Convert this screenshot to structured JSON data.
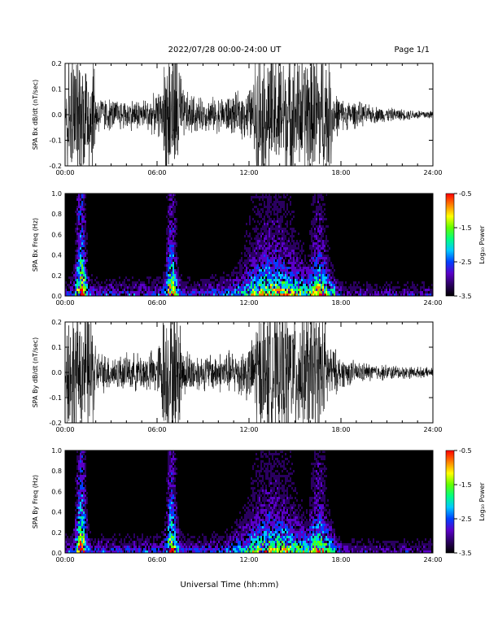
{
  "header": {
    "title": "2022/07/28  00:00-24:00 UT",
    "page": "Page 1/1"
  },
  "xlabel": "Universal Time (hh:mm)",
  "colorbar": {
    "label": "Log₁₀ Power",
    "ticks": [
      "-0.5",
      "-1.5",
      "-2.5",
      "-3.5"
    ],
    "range": [
      -3.5,
      -0.5
    ],
    "colors": [
      "#000000",
      "#2a0060",
      "#5a00c8",
      "#0040ff",
      "#00c8ff",
      "#00ff80",
      "#60ff00",
      "#ffff00",
      "#ff8000",
      "#ff0000"
    ]
  },
  "chart_data": [
    {
      "type": "line",
      "ylabel": "SPA Bx dB/dt (nT/sec)",
      "xlim": [
        0,
        24
      ],
      "ylim": [
        -0.2,
        0.2
      ],
      "xticks": [
        "00:00",
        "06:00",
        "12:00",
        "18:00",
        "24:00"
      ],
      "yticks": [
        "0.2",
        "0.1",
        "0.0",
        "-0.1",
        "-0.2"
      ],
      "ytick_values": [
        0.2,
        0.1,
        0.0,
        -0.1,
        -0.2
      ],
      "envelope": {
        "hours": [
          0,
          0.1,
          0.15,
          1.9,
          2.0,
          2.5,
          3.0,
          4.0,
          5.0,
          6.0,
          6.4,
          6.5,
          7.5,
          7.6,
          8.0,
          9.0,
          10.0,
          11.0,
          12.0,
          12.3,
          12.4,
          16.0,
          16.1,
          17.3,
          17.5,
          18.0,
          19.0,
          20.0,
          22.0,
          24.0
        ],
        "amplitude": [
          0.08,
          0.14,
          0.3,
          0.3,
          0.1,
          0.08,
          0.07,
          0.07,
          0.07,
          0.09,
          0.12,
          0.3,
          0.3,
          0.12,
          0.1,
          0.07,
          0.08,
          0.09,
          0.12,
          0.14,
          0.3,
          0.3,
          0.3,
          0.3,
          0.12,
          0.07,
          0.06,
          0.04,
          0.025,
          0.02
        ]
      }
    },
    {
      "type": "heatmap",
      "ylabel": "SPA Bx Freq (Hz)",
      "xlim": [
        0,
        24
      ],
      "ylim": [
        0,
        1.0
      ],
      "xticks": [
        "00:00",
        "06:00",
        "12:00",
        "18:00",
        "24:00"
      ],
      "yticks": [
        "1.0",
        "0.8",
        "0.6",
        "0.4",
        "0.2",
        "0.0"
      ],
      "ytick_values": [
        1.0,
        0.8,
        0.6,
        0.4,
        0.2,
        0.0
      ],
      "bursts": [
        {
          "hour": 1.0,
          "width": 0.35,
          "strength": 1.0
        },
        {
          "hour": 6.9,
          "width": 0.35,
          "strength": 0.85
        },
        {
          "hour": 13.5,
          "width": 2.2,
          "strength": 0.55
        },
        {
          "hour": 16.5,
          "width": 0.7,
          "strength": 0.6
        }
      ]
    },
    {
      "type": "line",
      "ylabel": "SPA By dB/dt (nT/sec)",
      "xlim": [
        0,
        24
      ],
      "ylim": [
        -0.2,
        0.2
      ],
      "xticks": [
        "00:00",
        "06:00",
        "12:00",
        "18:00",
        "24:00"
      ],
      "yticks": [
        "0.2",
        "0.1",
        "0.0",
        "-0.1",
        "-0.2"
      ],
      "ytick_values": [
        0.2,
        0.1,
        0.0,
        -0.1,
        -0.2
      ],
      "envelope": {
        "hours": [
          0,
          0.1,
          0.15,
          1.9,
          2.0,
          3.0,
          4.0,
          5.0,
          6.0,
          6.5,
          7.5,
          7.6,
          8.0,
          9.0,
          10.0,
          11.0,
          12.0,
          12.3,
          12.4,
          16.0,
          16.6,
          17.0,
          17.2,
          18.0,
          19.0,
          20.0,
          22.0,
          24.0
        ],
        "amplitude": [
          0.08,
          0.14,
          0.3,
          0.3,
          0.1,
          0.08,
          0.08,
          0.09,
          0.1,
          0.3,
          0.3,
          0.12,
          0.1,
          0.08,
          0.09,
          0.1,
          0.13,
          0.15,
          0.3,
          0.3,
          0.3,
          0.22,
          0.14,
          0.07,
          0.05,
          0.04,
          0.03,
          0.02
        ]
      }
    },
    {
      "type": "heatmap",
      "ylabel": "SPA By Freq (Hz)",
      "xlim": [
        0,
        24
      ],
      "ylim": [
        0,
        1.0
      ],
      "xticks": [
        "00:00",
        "06:00",
        "12:00",
        "18:00",
        "24:00"
      ],
      "yticks": [
        "1.0",
        "0.8",
        "0.6",
        "0.4",
        "0.2",
        "0.0"
      ],
      "ytick_values": [
        1.0,
        0.8,
        0.6,
        0.4,
        0.2,
        0.0
      ],
      "bursts": [
        {
          "hour": 1.0,
          "width": 0.35,
          "strength": 1.0
        },
        {
          "hour": 6.9,
          "width": 0.35,
          "strength": 0.85
        },
        {
          "hour": 13.5,
          "width": 2.2,
          "strength": 0.5
        },
        {
          "hour": 16.5,
          "width": 0.7,
          "strength": 0.6
        }
      ]
    }
  ]
}
